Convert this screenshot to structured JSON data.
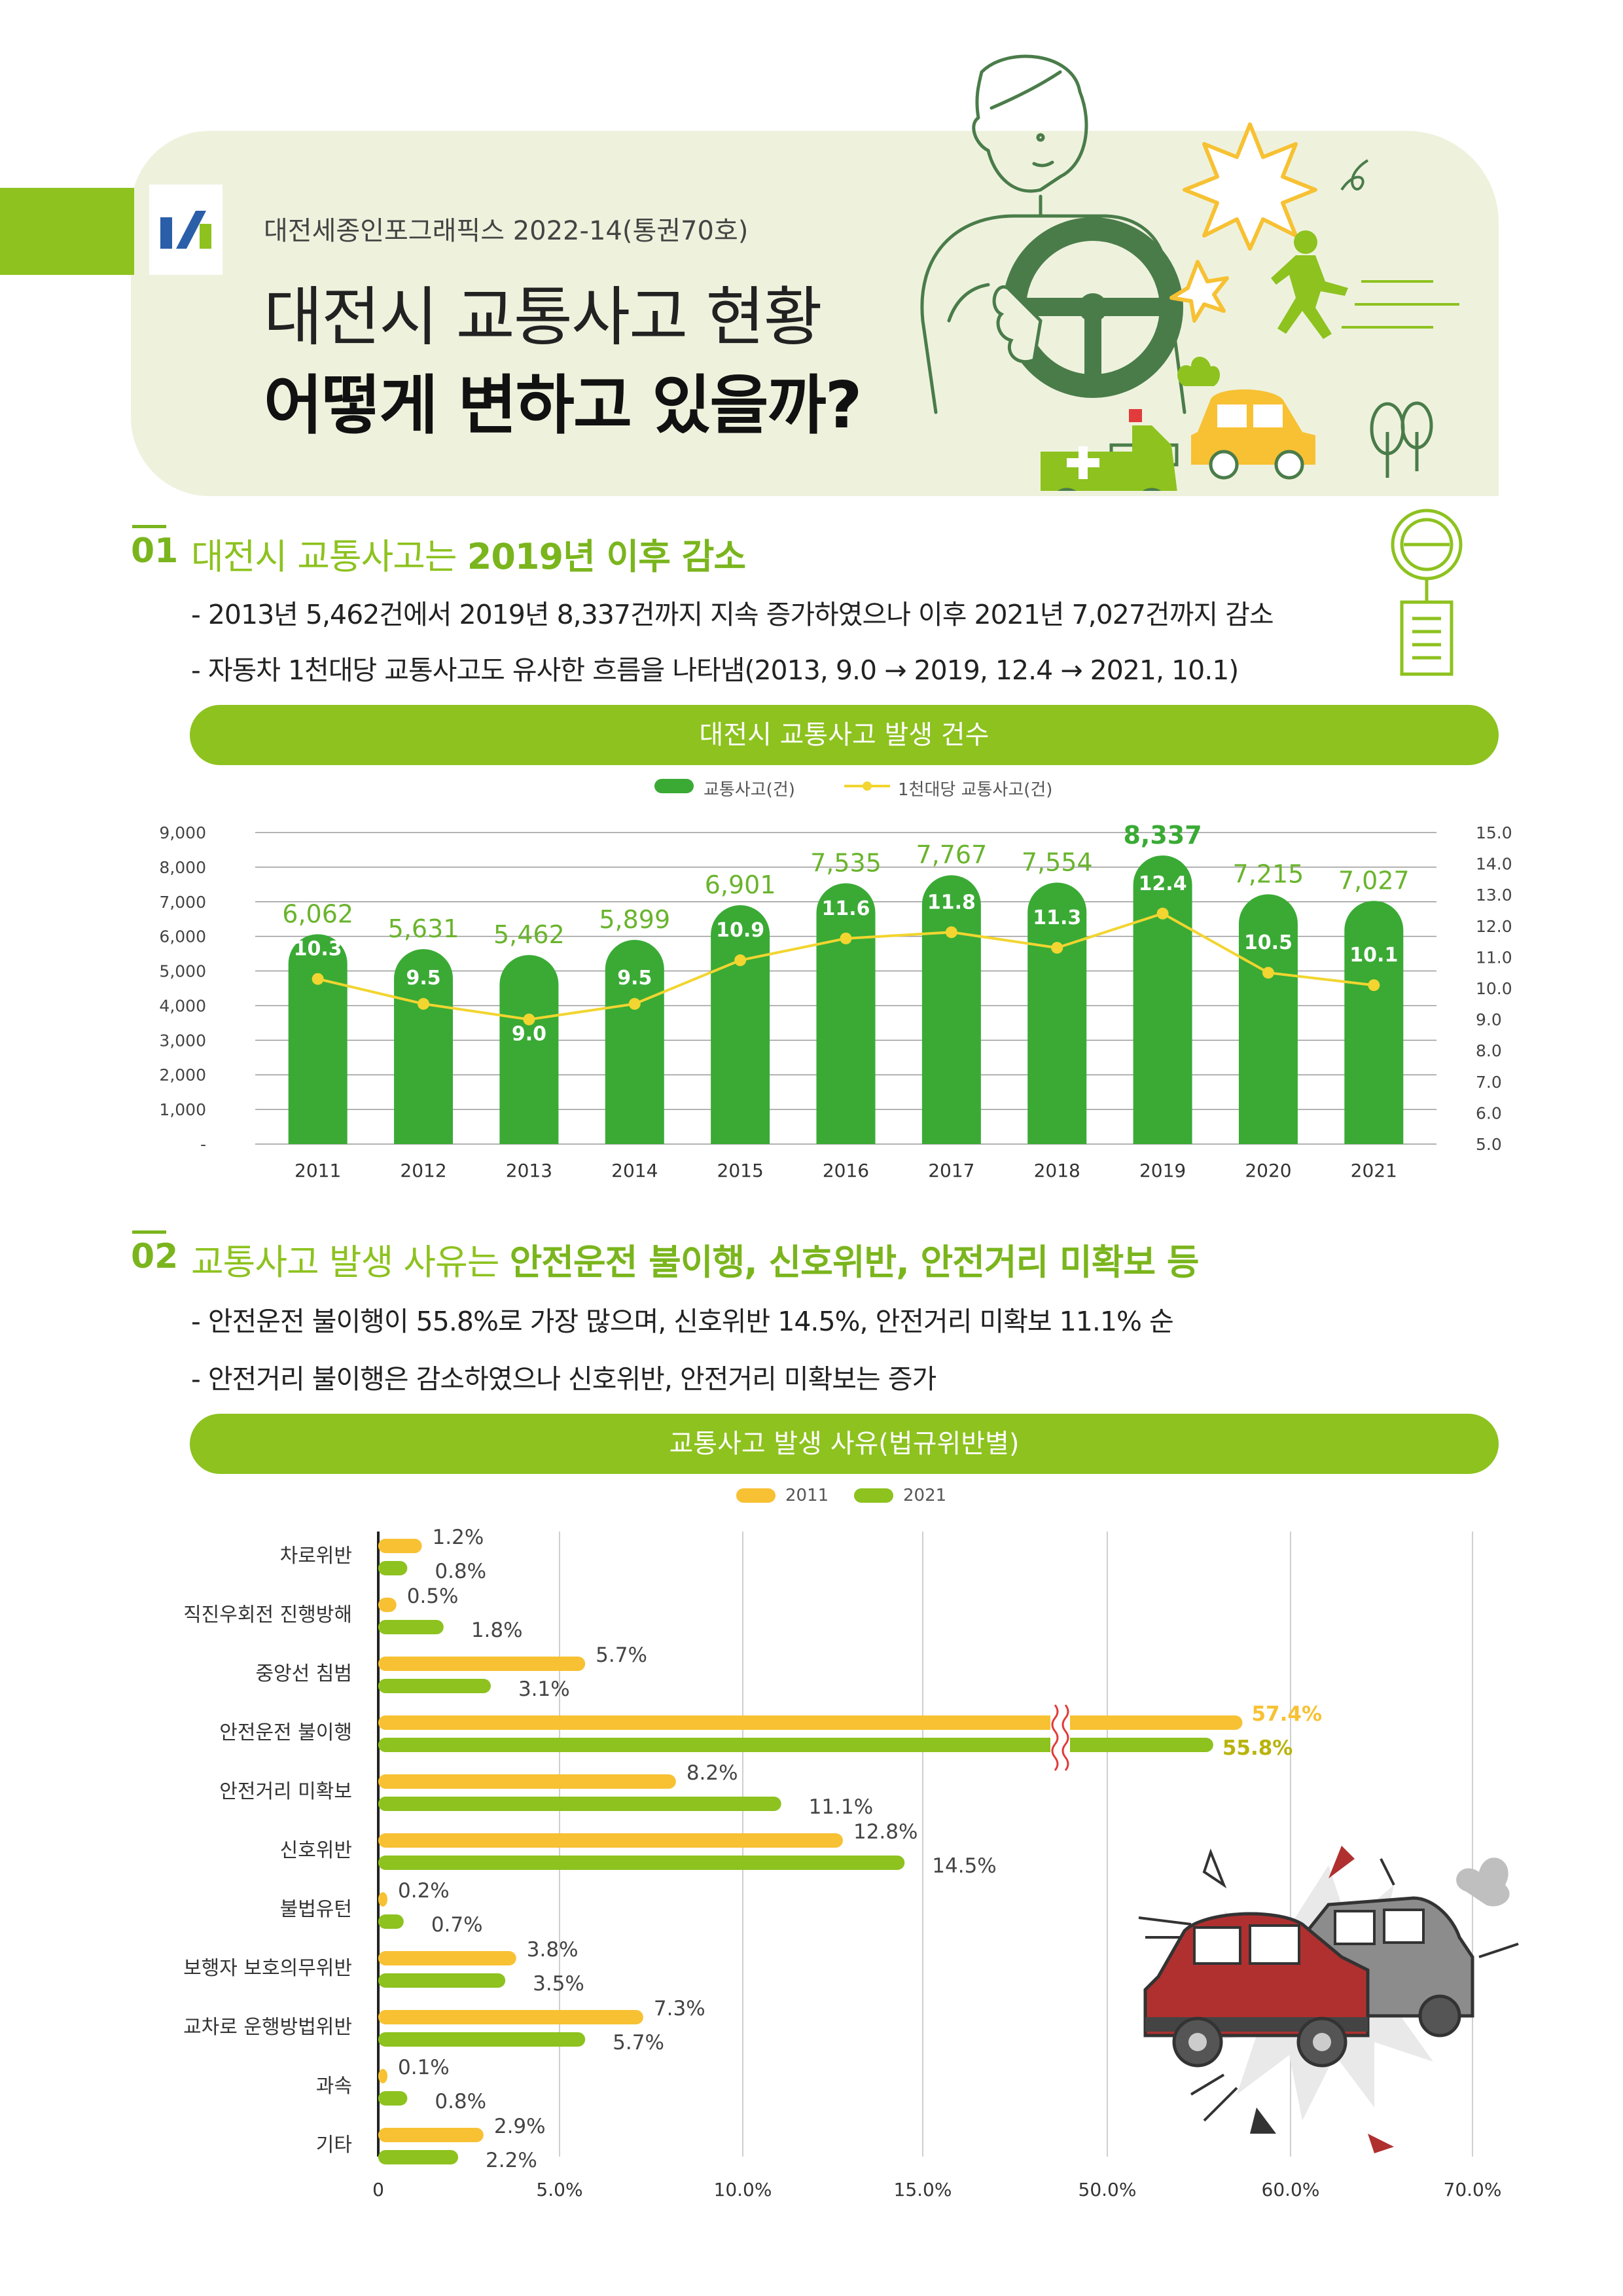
{
  "header": {
    "subtitle": "대전세종인포그래픽스 2022-14(통권70호)",
    "title_line1": "대전시 교통사고 현황",
    "title_line2": "어떻게 변하고 있을까?",
    "colors": {
      "accent": "#8dc21f",
      "dark_green": "#4a7c4a",
      "bar_green": "#3aaa35",
      "yellow": "#f7c133",
      "header_bg": "#eef2dd"
    }
  },
  "section1": {
    "number": "01",
    "title_plain": "대전시 교통사고는 ",
    "title_bold": "2019년 이후 감소",
    "bullets": [
      "- 2013년 5,462건에서 2019년 8,337건까지 지속 증가하였으나 이후 2021년 7,027건까지 감소",
      "- 자동차 1천대당 교통사고도 유사한 흐름을 나타냄(2013, 9.0 → 2019, 12.4 → 2021, 10.1)"
    ],
    "banner": "대전시 교통사고 발생 건수",
    "legend": [
      "교통사고(건)",
      "1천대당 교통사고(건)"
    ]
  },
  "section2": {
    "number": "02",
    "title_plain": "교통사고 발생 사유는 ",
    "title_bold": "안전운전 불이행, 신호위반, 안전거리 미확보 등",
    "bullets": [
      "- 안전운전 불이행이 55.8%로 가장 많으며, 신호위반 14.5%, 안전거리 미확보 11.1% 순",
      "- 안전거리 불이행은 감소하였으나 신호위반, 안전거리 미확보는 증가"
    ],
    "banner": "교통사고 발생 사유(법규위반별)",
    "legend": [
      "2011",
      "2021"
    ]
  },
  "chart_data": [
    {
      "type": "bar",
      "title": "대전시 교통사고 발생 건수",
      "categories": [
        "2011",
        "2012",
        "2013",
        "2014",
        "2015",
        "2016",
        "2017",
        "2018",
        "2019",
        "2020",
        "2021"
      ],
      "series": [
        {
          "name": "교통사고(건)",
          "type": "bar",
          "color": "#3aaa35",
          "values": [
            6062,
            5631,
            5462,
            5899,
            6901,
            7535,
            7767,
            7554,
            8337,
            7215,
            7027
          ],
          "labels": [
            "6,062",
            "5,631",
            "5,462",
            "5,899",
            "6,901",
            "7,535",
            "7,767",
            "7,554",
            "8,337",
            "7,215",
            "7,027"
          ]
        },
        {
          "name": "1천대당 교통사고(건)",
          "type": "line",
          "color": "#f2d530",
          "values": [
            10.3,
            9.5,
            9.0,
            9.5,
            10.9,
            11.6,
            11.8,
            11.3,
            12.4,
            10.5,
            10.1
          ],
          "labels": [
            "10.3",
            "9.5",
            "9.0",
            "9.5",
            "10.9",
            "11.6",
            "11.8",
            "11.3",
            "12.4",
            "10.5",
            "10.1"
          ]
        }
      ],
      "y_left": {
        "ylim": [
          0,
          9000
        ],
        "ticks": [
          "9,000",
          "8,000",
          "7,000",
          "6,000",
          "5,000",
          "4,000",
          "3,000",
          "2,000",
          "1,000",
          "-"
        ]
      },
      "y_right": {
        "ylim": [
          5.0,
          15.0
        ],
        "ticks": [
          "15.0",
          "14.0",
          "13.0",
          "12.0",
          "11.0",
          "10.0",
          "9.0",
          "8.0",
          "7.0",
          "6.0",
          "5.0"
        ]
      },
      "grid": true,
      "legend_position": "top-center",
      "highlight_index": 8
    },
    {
      "type": "bar",
      "orientation": "horizontal",
      "title": "교통사고 발생 사유(법규위반별)",
      "categories": [
        "차로위반",
        "직진우회전 진행방해",
        "중앙선 침범",
        "안전운전 불이행",
        "안전거리 미확보",
        "신호위반",
        "불법유턴",
        "보행자 보호의무위반",
        "교차로 운행방법위반",
        "과속",
        "기타"
      ],
      "series": [
        {
          "name": "2011",
          "color": "#f7c133",
          "values": [
            1.2,
            0.5,
            5.7,
            57.4,
            8.2,
            12.8,
            0.2,
            3.8,
            7.3,
            0.1,
            2.9
          ],
          "labels": [
            "1.2%",
            "0.5%",
            "5.7%",
            "57.4%",
            "8.2%",
            "12.8%",
            "0.2%",
            "3.8%",
            "7.3%",
            "0.1%",
            "2.9%"
          ]
        },
        {
          "name": "2021",
          "color": "#8dc21f",
          "values": [
            0.8,
            1.8,
            3.1,
            55.8,
            11.1,
            14.5,
            0.7,
            3.5,
            5.7,
            0.8,
            2.2
          ],
          "labels": [
            "0.8%",
            "1.8%",
            "3.1%",
            "55.8%",
            "11.1%",
            "14.5%",
            "0.7%",
            "3.5%",
            "5.7%",
            "0.8%",
            "2.2%"
          ]
        }
      ],
      "x_ticks": [
        "0",
        "5.0%",
        "10.0%",
        "15.0%",
        "50.0%",
        "60.0%",
        "70.0%"
      ],
      "axis_break": "between 15.0% and 50.0%",
      "highlight_index": 3,
      "legend_position": "top-center"
    }
  ]
}
